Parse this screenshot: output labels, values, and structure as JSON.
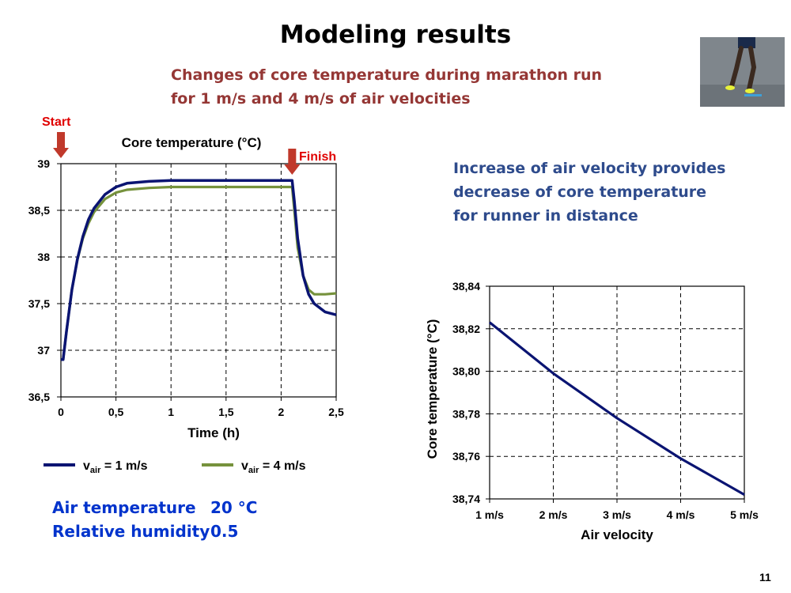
{
  "slide": {
    "title": "Modeling results",
    "subtitle_line1": "Changes of core  temperature  during marathon run",
    "subtitle_line2": "for 1 m/s and 4 m/s of air velocities",
    "note_line1": "Increase of air velocity provides",
    "note_line2": "decrease of core temperature",
    "note_line3": "for runner in distance",
    "conditions": [
      {
        "label": "Air temperature",
        "value": "20 °C"
      },
      {
        "label": "Relative humidity",
        "value": "0.5"
      }
    ],
    "page_number": "11"
  },
  "colors": {
    "series_1ms": "#0a1472",
    "series_4ms": "#76923c",
    "marker": "#c0392b"
  },
  "chart_data": [
    {
      "type": "line",
      "title": "Core  temperature  (°C)",
      "xlabel": "Time  (h)",
      "ylabel": "",
      "xlim": [
        0,
        2.5
      ],
      "ylim": [
        36.5,
        39
      ],
      "x_ticks": [
        "0",
        "0,5",
        "1",
        "1,5",
        "2",
        "2,5"
      ],
      "y_ticks": [
        "36,5",
        "37",
        "37,5",
        "38",
        "38,5",
        "39"
      ],
      "grid": true,
      "legend_position": "bottom",
      "annotations": [
        {
          "text": "Start",
          "x": 0
        },
        {
          "text": "Finish",
          "x": 2.1
        }
      ],
      "series": [
        {
          "name": "1 m/s",
          "legend_prefix": "v",
          "legend_sub": "air",
          "legend_suffix": " = 1 m/s",
          "points": [
            [
              0,
              36.9
            ],
            [
              0.02,
              36.9
            ],
            [
              0.05,
              37.2
            ],
            [
              0.1,
              37.65
            ],
            [
              0.15,
              37.98
            ],
            [
              0.2,
              38.22
            ],
            [
              0.25,
              38.4
            ],
            [
              0.3,
              38.52
            ],
            [
              0.4,
              38.67
            ],
            [
              0.5,
              38.75
            ],
            [
              0.6,
              38.79
            ],
            [
              0.8,
              38.81
            ],
            [
              1.0,
              38.82
            ],
            [
              1.5,
              38.82
            ],
            [
              2.0,
              38.82
            ],
            [
              2.1,
              38.82
            ],
            [
              2.12,
              38.6
            ],
            [
              2.15,
              38.2
            ],
            [
              2.2,
              37.8
            ],
            [
              2.25,
              37.6
            ],
            [
              2.3,
              37.5
            ],
            [
              2.4,
              37.41
            ],
            [
              2.5,
              37.38
            ]
          ]
        },
        {
          "name": "4 m/s",
          "legend_prefix": "v",
          "legend_sub": "air",
          "legend_suffix": " = 4 m/s",
          "points": [
            [
              0,
              36.9
            ],
            [
              0.02,
              36.9
            ],
            [
              0.05,
              37.2
            ],
            [
              0.1,
              37.65
            ],
            [
              0.15,
              37.97
            ],
            [
              0.2,
              38.2
            ],
            [
              0.25,
              38.36
            ],
            [
              0.3,
              38.48
            ],
            [
              0.4,
              38.62
            ],
            [
              0.5,
              38.69
            ],
            [
              0.6,
              38.72
            ],
            [
              0.8,
              38.74
            ],
            [
              1.0,
              38.75
            ],
            [
              1.5,
              38.75
            ],
            [
              2.0,
              38.75
            ],
            [
              2.1,
              38.75
            ],
            [
              2.12,
              38.5
            ],
            [
              2.15,
              38.1
            ],
            [
              2.2,
              37.8
            ],
            [
              2.25,
              37.65
            ],
            [
              2.3,
              37.6
            ],
            [
              2.4,
              37.6
            ],
            [
              2.5,
              37.61
            ]
          ]
        }
      ]
    },
    {
      "type": "line",
      "title": "",
      "xlabel": "Air velocity",
      "ylabel": "Core  temperature  (°C)",
      "categories": [
        "1 m/s",
        "2 m/s",
        "3 m/s",
        "4 m/s",
        "5 m/s"
      ],
      "ylim": [
        38.74,
        38.84
      ],
      "y_ticks": [
        "38,74",
        "38,76",
        "38,78",
        "38,80",
        "38,82",
        "38,84"
      ],
      "grid": true,
      "series": [
        {
          "values": [
            38.823,
            38.799,
            38.778,
            38.759,
            38.742
          ]
        }
      ]
    }
  ]
}
